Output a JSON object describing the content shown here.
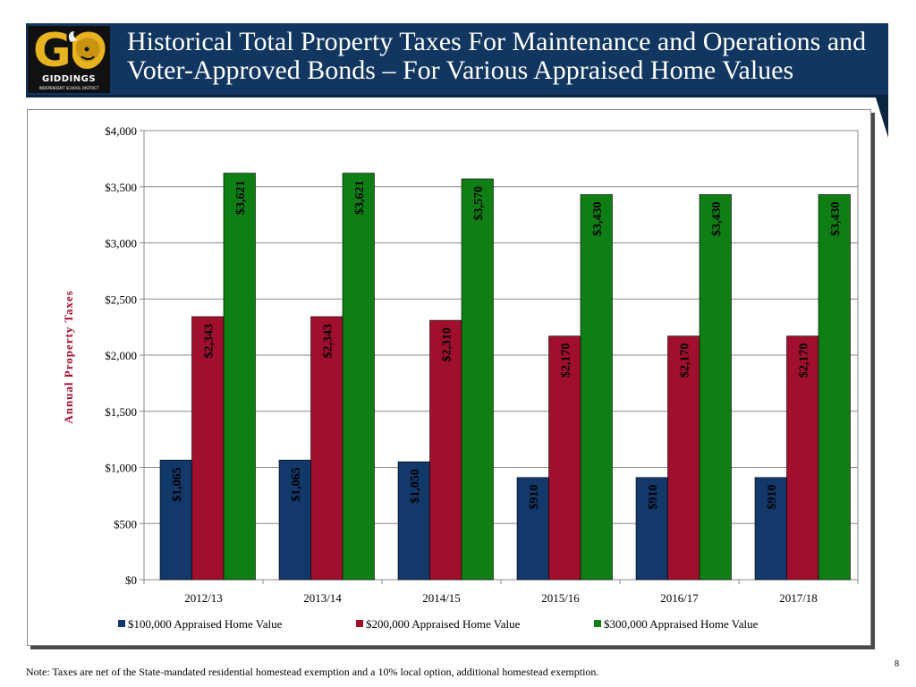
{
  "slide": {
    "title": "Historical Total Property Taxes For Maintenance and Operations and Voter-Approved Bonds – For Various Appraised Home Values",
    "footnote": "Note: Taxes are net of the State-mandated residential homestead exemption and a 10% local option, additional homestead exemption.",
    "page_number": "8",
    "logo": {
      "letter": "G",
      "name": "GIDDINGS",
      "subtitle": "INDEPENDENT SCHOOL DISTRICT"
    }
  },
  "colors": {
    "header_bg": "#11365f",
    "series_100k": "#13386a",
    "series_200k": "#a0102e",
    "series_300k": "#0f7f15"
  },
  "chart_data": {
    "type": "bar",
    "title": "",
    "xlabel": "",
    "ylabel": "Annual Property Taxes",
    "ylim": [
      0,
      4000
    ],
    "yticks": [
      0,
      500,
      1000,
      1500,
      2000,
      2500,
      3000,
      3500,
      4000
    ],
    "ytick_labels": [
      "$0",
      "$500",
      "$1,000",
      "$1,500",
      "$2,000",
      "$2,500",
      "$3,000",
      "$3,500",
      "$4,000"
    ],
    "grid": true,
    "legend_position": "bottom",
    "categories": [
      "2012/13",
      "2013/14",
      "2014/15",
      "2015/16",
      "2016/17",
      "2017/18"
    ],
    "series": [
      {
        "name": "$100,000 Appraised Home Value",
        "values": [
          1065,
          1065,
          1050,
          910,
          910,
          910
        ],
        "labels": [
          "$1,065",
          "$1,065",
          "$1,050",
          "$910",
          "$910",
          "$910"
        ]
      },
      {
        "name": "$200,000 Appraised Home Value",
        "values": [
          2343,
          2343,
          2310,
          2170,
          2170,
          2170
        ],
        "labels": [
          "$2,343",
          "$2,343",
          "$2,310",
          "$2,170",
          "$2,170",
          "$2,170"
        ]
      },
      {
        "name": "$300,000 Appraised Home Value",
        "values": [
          3621,
          3621,
          3570,
          3430,
          3430,
          3430
        ],
        "labels": [
          "$3,621",
          "$3,621",
          "$3,570",
          "$3,430",
          "$3,430",
          "$3,430"
        ]
      }
    ]
  }
}
